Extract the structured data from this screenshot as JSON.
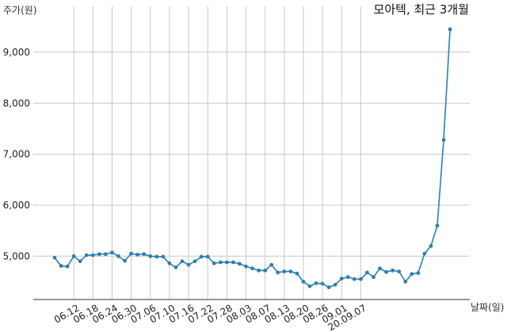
{
  "chart_data": {
    "type": "line",
    "title": "모아텍, 최근 3개월",
    "ylabel": "주가(원)",
    "xlabel": "날짜(일)",
    "ylim": [
      4150,
      9900
    ],
    "y_ticks": [
      5000,
      6000,
      7000,
      8000,
      9000
    ],
    "y_tick_labels": [
      "5,000",
      "6,000",
      "7,000",
      "8,000",
      "9,000"
    ],
    "x_tick_labels": [
      "06.12",
      "06.18",
      "06.24",
      "06.30",
      "07.06",
      "07.10",
      "07.16",
      "07.22",
      "07.28",
      "08.03",
      "08.07",
      "08.13",
      "08.20",
      "08.26",
      "09.01",
      "20.09.07"
    ],
    "x_tick_positions": [
      3,
      6,
      9,
      12,
      15,
      18,
      21,
      24,
      27,
      30,
      33,
      36,
      39,
      42,
      45,
      48
    ],
    "grid": true,
    "line_color": "#2e7fb0",
    "series": [
      {
        "values": [
          4970,
          4810,
          4800,
          5000,
          4900,
          5020,
          5020,
          5040,
          5040,
          5070,
          5000,
          4910,
          5050,
          5030,
          5040,
          5000,
          4990,
          4990,
          4860,
          4780,
          4900,
          4830,
          4900,
          4990,
          4990,
          4860,
          4880,
          4880,
          4880,
          4850,
          4800,
          4760,
          4720,
          4720,
          4830,
          4680,
          4700,
          4700,
          4660,
          4500,
          4410,
          4470,
          4460,
          4390,
          4440,
          4560,
          4590,
          4550,
          4550,
          4680,
          4590,
          4760,
          4690,
          4720,
          4700,
          4500,
          4650,
          4670,
          5050,
          5200,
          5600,
          7280,
          9450
        ]
      }
    ]
  }
}
